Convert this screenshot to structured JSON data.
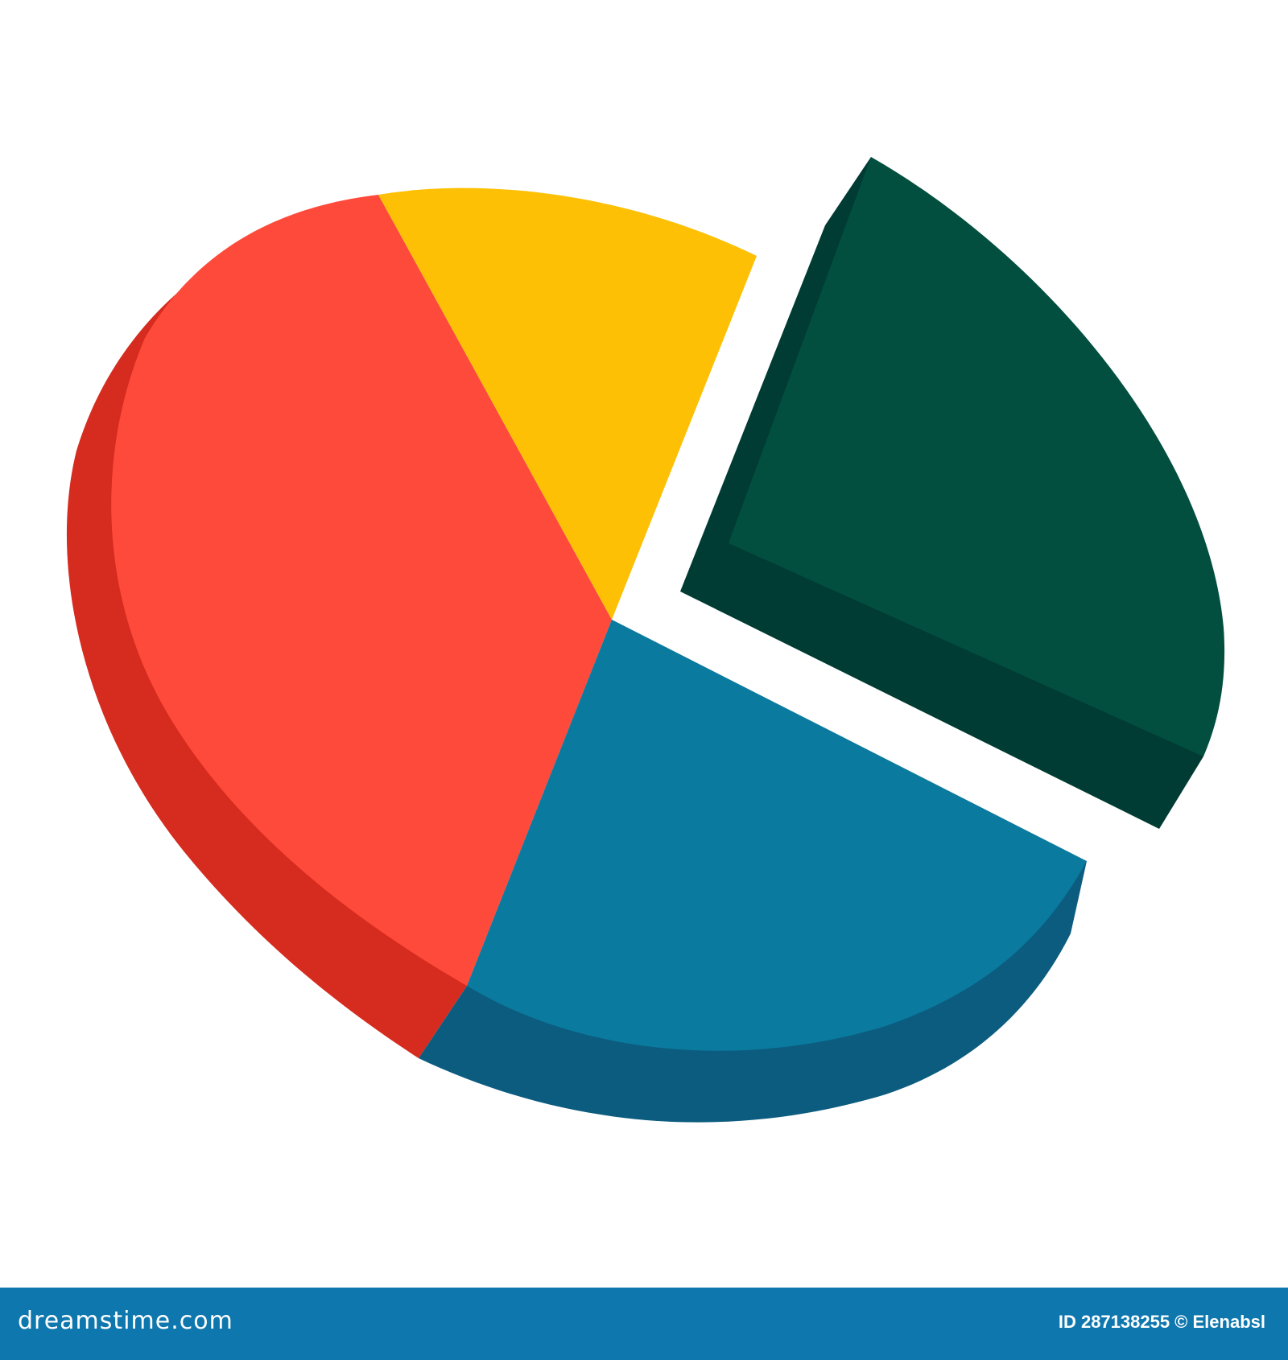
{
  "illustration": {
    "type": "3d-pie-icon",
    "colors": {
      "red_top": "#fe4a3a",
      "red_side": "#d62b1f",
      "yellow_top": "#fdc005",
      "blue_top": "#0a7a9e",
      "blue_side": "#0c5c80",
      "green_top": "#024f40",
      "green_side": "#003c33"
    }
  },
  "footer": {
    "brand": "dreamstime.com",
    "credit": "ID 287138255 © Elenabsl",
    "background": "#0e77ae"
  }
}
